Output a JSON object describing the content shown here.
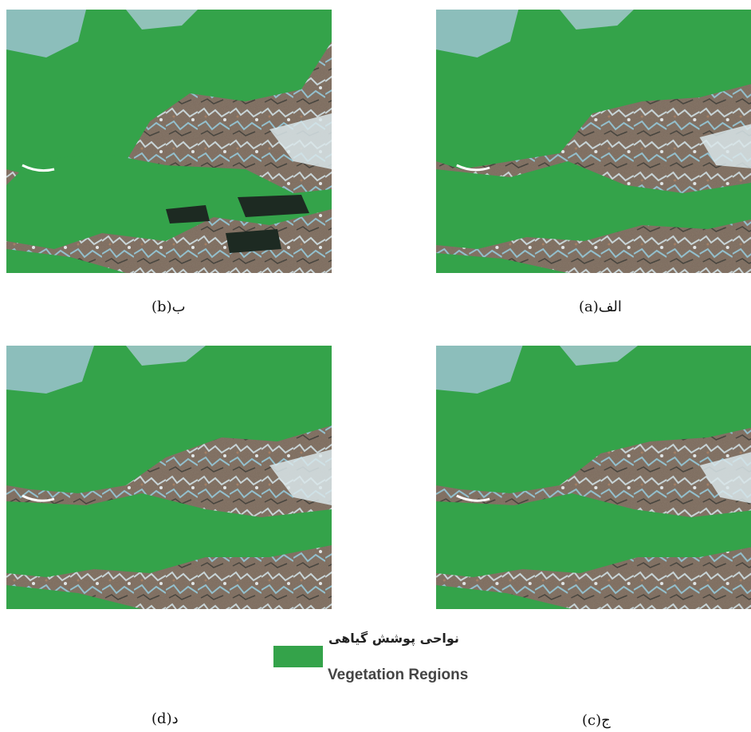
{
  "colors": {
    "vegetation": "#34a34a",
    "terrain_brown": "#7a6a5a",
    "terrain_blue": "#7fb6c9",
    "terrain_white": "#e8eef0",
    "shadow": "#1d2a22"
  },
  "panels": [
    {
      "id": "a",
      "caption": "الف(a)"
    },
    {
      "id": "b",
      "caption": "ب(b)"
    },
    {
      "id": "c",
      "caption": "ج(c)"
    },
    {
      "id": "d",
      "caption": "د(d)"
    }
  ],
  "legend": {
    "label_fa": "نواحی پوشش گیاهی",
    "label_en": "Vegetation Regions"
  }
}
